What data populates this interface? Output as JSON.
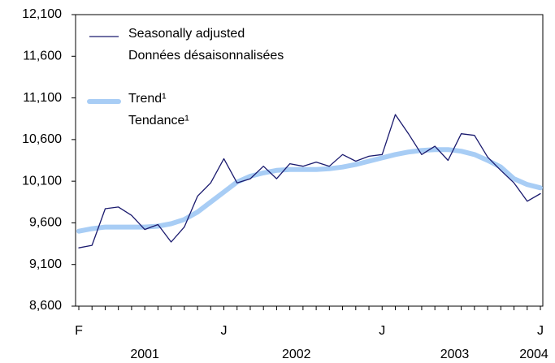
{
  "chart_data": {
    "type": "line",
    "categories": [
      "F",
      null,
      null,
      null,
      null,
      null,
      null,
      null,
      null,
      null,
      null,
      "J",
      null,
      null,
      null,
      null,
      null,
      null,
      null,
      null,
      null,
      null,
      null,
      "J",
      null,
      null,
      null,
      null,
      null,
      null,
      null,
      null,
      null,
      null,
      null,
      "J"
    ],
    "years": [
      "2001",
      "2002",
      "2003",
      "2004"
    ],
    "series": [
      {
        "name": [
          "Seasonally adjusted",
          "Données désaisonnalisées"
        ],
        "color": "#1a1a6e",
        "width": 1.3,
        "values": [
          9300,
          9330,
          9770,
          9790,
          9690,
          9520,
          9580,
          9370,
          9550,
          9920,
          10080,
          10370,
          10080,
          10130,
          10280,
          10130,
          10310,
          10280,
          10330,
          10280,
          10420,
          10340,
          10400,
          10420,
          10900,
          10670,
          10420,
          10520,
          10350,
          10670,
          10650,
          10390,
          10230,
          10080,
          9860,
          9950
        ]
      },
      {
        "name": [
          "Trend¹",
          "Tendance¹"
        ],
        "color": "#a8cdf5",
        "width": 6,
        "values": [
          9500,
          9530,
          9550,
          9550,
          9550,
          9550,
          9560,
          9590,
          9640,
          9730,
          9850,
          9970,
          10090,
          10160,
          10200,
          10230,
          10240,
          10240,
          10240,
          10250,
          10270,
          10300,
          10340,
          10380,
          10420,
          10450,
          10470,
          10480,
          10480,
          10460,
          10420,
          10350,
          10270,
          10130,
          10060,
          10020
        ]
      }
    ],
    "ylim": [
      8600,
      12100
    ],
    "yticks": [
      {
        "value": 8600,
        "label": "8,600"
      },
      {
        "value": 9100,
        "label": "9,100"
      },
      {
        "value": 9600,
        "label": "9,600"
      },
      {
        "value": 10100,
        "label": "10,100"
      },
      {
        "value": 10600,
        "label": "10,600"
      },
      {
        "value": 11100,
        "label": "11,100"
      },
      {
        "value": 11600,
        "label": "11,600"
      },
      {
        "value": 12100,
        "label": "12,100"
      }
    ],
    "grid": false
  }
}
